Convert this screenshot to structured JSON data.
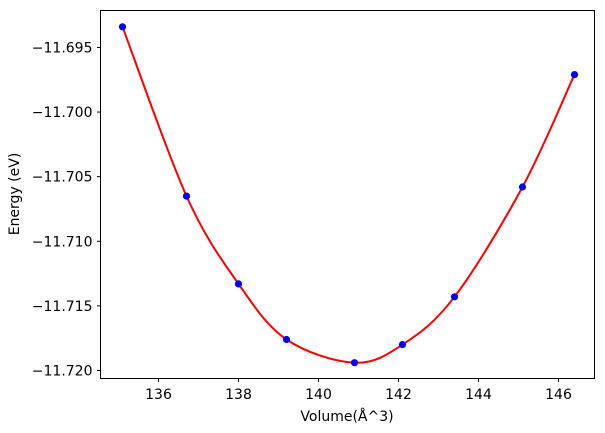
{
  "chart_data": {
    "type": "scatter",
    "title": "",
    "xlabel": "Volume(Å^3)",
    "ylabel": "Energy (eV)",
    "xlim": [
      134.55,
      146.9
    ],
    "ylim": [
      -11.72062,
      -11.69214
    ],
    "grid": false,
    "legend": null,
    "axes_color": "#000000",
    "x_ticks": {
      "values": [
        136,
        138,
        140,
        142,
        144,
        146
      ],
      "labels": [
        "136",
        "138",
        "140",
        "142",
        "144",
        "146"
      ]
    },
    "y_ticks": {
      "values": [
        -11.695,
        -11.7,
        -11.705,
        -11.71,
        -11.715,
        -11.72
      ],
      "labels": [
        "−11.695",
        "−11.700",
        "−11.705",
        "−11.710",
        "−11.715",
        "−11.720"
      ]
    },
    "series": [
      {
        "name": "fit-curve",
        "type": "line",
        "color": "#ff0000",
        "x": [
          135.1,
          136.7,
          138.0,
          139.2,
          140.9,
          142.1,
          143.4,
          145.1,
          146.4
        ],
        "y": [
          -11.6934,
          -11.7065,
          -11.7133,
          -11.7176,
          -11.7194,
          -11.718,
          -11.7143,
          -11.7058,
          -11.6971
        ]
      },
      {
        "name": "calculated-points",
        "type": "scatter",
        "marker": "circle",
        "color": "#0000ff",
        "x": [
          135.1,
          136.7,
          138.0,
          139.2,
          140.9,
          142.1,
          143.4,
          145.1,
          146.4
        ],
        "y": [
          -11.6934,
          -11.7065,
          -11.7133,
          -11.7176,
          -11.7194,
          -11.718,
          -11.7143,
          -11.7058,
          -11.6971
        ]
      }
    ]
  }
}
